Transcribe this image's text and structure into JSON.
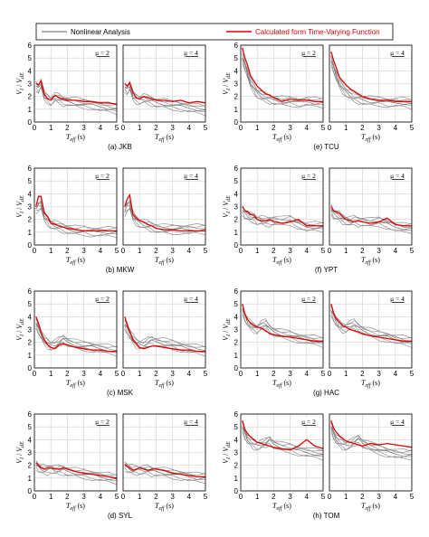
{
  "legend": {
    "nonlinear_label": "Nonlinear Analysis",
    "calculated_label": "Calculated form Time-Varying Function",
    "nonlinear_color": "#808080",
    "calculated_color": "#e00000"
  },
  "axis_text": {
    "x_main": "T",
    "x_sub": "eff",
    "x_unit": " (s)",
    "y_main_1": "V",
    "y_sub_1": "I",
    "y_sep": " / ",
    "y_main_2": "V",
    "y_sub_2": "dE"
  },
  "mu_values": [
    "μ = 2",
    "μ = 4"
  ],
  "captions": [
    "(a) JKB",
    "(e) TCU",
    "(b) MKW",
    "(f) YPT",
    "(c) MSK",
    "(g) HAC",
    "(d) SYL",
    "(h) TOM"
  ],
  "chart_data": {
    "type": "line",
    "xlim": [
      0,
      5
    ],
    "ylim": [
      0,
      6
    ],
    "xticks": [
      0,
      1,
      2,
      3,
      4,
      5
    ],
    "yticks": [
      0,
      1,
      2,
      3,
      4,
      5,
      6
    ],
    "grid": true,
    "legend_position": "top",
    "x": [
      0.1,
      0.25,
      0.4,
      0.6,
      0.8,
      1.0,
      1.25,
      1.5,
      1.75,
      2.0,
      2.5,
      3.0,
      3.5,
      4.0,
      4.5,
      5.0
    ],
    "stations": [
      {
        "caption": "(a) JKB",
        "mu2_red": [
          3.0,
          2.9,
          3.2,
          2.2,
          1.8,
          1.7,
          2.1,
          1.9,
          1.8,
          1.7,
          1.7,
          1.6,
          1.6,
          1.5,
          1.5,
          1.4
        ],
        "mu2_grey": [
          2.8,
          2.6,
          3.0,
          2.0,
          1.8,
          1.6,
          1.9,
          1.8,
          1.6,
          1.6,
          1.5,
          1.4,
          1.3,
          1.2,
          1.1,
          1.0
        ],
        "mu4_red": [
          3.0,
          2.8,
          3.1,
          2.3,
          1.9,
          1.8,
          2.0,
          1.9,
          1.8,
          1.7,
          1.7,
          1.6,
          1.7,
          1.5,
          1.6,
          1.5
        ],
        "mu4_grey": [
          2.7,
          2.5,
          2.8,
          2.0,
          1.8,
          1.7,
          1.8,
          1.7,
          1.6,
          1.5,
          1.4,
          1.3,
          1.2,
          1.1,
          1.0,
          0.9
        ]
      },
      {
        "caption": "(e) TCU",
        "mu2_red": [
          5.8,
          5.0,
          4.5,
          3.6,
          3.2,
          2.8,
          2.5,
          2.2,
          2.1,
          1.9,
          1.6,
          1.8,
          1.7,
          1.7,
          1.6,
          1.6
        ],
        "mu2_grey": [
          5.0,
          4.4,
          3.8,
          3.0,
          2.6,
          2.2,
          2.0,
          1.9,
          1.8,
          1.7,
          1.6,
          1.6,
          1.5,
          1.6,
          1.5,
          1.5
        ],
        "mu4_red": [
          5.5,
          4.8,
          4.3,
          3.5,
          3.2,
          2.9,
          2.6,
          2.4,
          2.2,
          2.0,
          1.8,
          1.7,
          1.7,
          1.6,
          1.6,
          1.6
        ],
        "mu4_grey": [
          4.8,
          4.2,
          3.6,
          3.0,
          2.6,
          2.3,
          2.1,
          1.9,
          1.8,
          1.7,
          1.6,
          1.6,
          1.5,
          1.5,
          1.5,
          1.4
        ]
      },
      {
        "caption": "(b) MKW",
        "mu2_red": [
          3.0,
          3.8,
          3.8,
          2.5,
          2.2,
          1.7,
          1.6,
          1.5,
          1.4,
          1.3,
          1.2,
          1.1,
          1.1,
          1.1,
          1.1,
          1.1
        ],
        "mu2_grey": [
          2.8,
          3.0,
          3.1,
          2.2,
          1.9,
          1.6,
          1.5,
          1.4,
          1.3,
          1.2,
          1.1,
          1.1,
          1.0,
          1.0,
          1.0,
          1.0
        ],
        "mu4_red": [
          3.0,
          3.6,
          3.9,
          2.4,
          2.1,
          1.9,
          1.8,
          1.6,
          1.5,
          1.3,
          1.2,
          1.2,
          1.1,
          1.1,
          1.1,
          1.1
        ],
        "mu4_grey": [
          2.6,
          3.0,
          3.1,
          2.2,
          1.9,
          1.7,
          1.6,
          1.5,
          1.4,
          1.3,
          1.2,
          1.2,
          1.2,
          1.2,
          1.2,
          1.2
        ]
      },
      {
        "caption": "(f) YPT",
        "mu2_red": [
          3.0,
          2.7,
          2.6,
          2.4,
          2.3,
          2.0,
          1.9,
          1.9,
          2.0,
          1.8,
          1.7,
          1.8,
          2.0,
          1.5,
          1.5,
          1.5
        ],
        "mu2_grey": [
          2.7,
          2.4,
          2.3,
          2.1,
          2.1,
          1.9,
          1.9,
          1.8,
          1.8,
          1.9,
          1.8,
          1.9,
          1.6,
          1.4,
          1.4,
          1.4
        ],
        "mu4_red": [
          3.0,
          2.7,
          2.6,
          2.5,
          2.2,
          2.0,
          1.9,
          1.8,
          1.9,
          1.8,
          1.7,
          1.8,
          2.1,
          1.6,
          1.5,
          1.5
        ],
        "mu4_grey": [
          2.8,
          2.4,
          2.3,
          2.2,
          2.0,
          1.9,
          1.8,
          1.9,
          1.8,
          1.8,
          1.7,
          1.8,
          1.6,
          1.4,
          1.3,
          1.3
        ]
      },
      {
        "caption": "(c) MSK",
        "mu2_red": [
          4.0,
          3.5,
          2.8,
          2.2,
          1.8,
          1.6,
          1.5,
          1.8,
          1.9,
          1.8,
          1.6,
          1.5,
          1.4,
          1.4,
          1.3,
          1.3
        ],
        "mu2_grey": [
          3.5,
          3.0,
          2.6,
          2.1,
          1.9,
          1.7,
          1.8,
          2.0,
          2.2,
          2.0,
          1.8,
          1.7,
          1.6,
          1.5,
          1.4,
          1.3
        ],
        "mu4_red": [
          4.0,
          3.4,
          2.9,
          2.2,
          1.9,
          1.6,
          1.5,
          1.6,
          1.7,
          1.7,
          1.6,
          1.5,
          1.4,
          1.4,
          1.3,
          1.3
        ],
        "mu4_grey": [
          3.4,
          3.0,
          2.6,
          2.2,
          1.9,
          1.8,
          1.8,
          2.0,
          2.1,
          2.0,
          1.9,
          1.8,
          1.6,
          1.5,
          1.4,
          1.3
        ]
      },
      {
        "caption": "(g) HAC",
        "mu2_red": [
          5.0,
          4.2,
          3.8,
          3.5,
          3.3,
          3.2,
          3.1,
          2.9,
          2.7,
          2.6,
          2.5,
          2.4,
          2.3,
          2.2,
          2.1,
          2.1
        ],
        "mu2_grey": [
          4.6,
          4.0,
          3.6,
          3.3,
          3.1,
          3.0,
          3.3,
          3.4,
          3.0,
          2.8,
          2.6,
          2.5,
          2.3,
          2.2,
          2.1,
          2.0
        ],
        "mu4_red": [
          5.0,
          4.3,
          3.9,
          3.6,
          3.3,
          3.2,
          3.0,
          2.9,
          2.8,
          2.7,
          2.5,
          2.4,
          2.3,
          2.2,
          2.1,
          2.1
        ],
        "mu4_grey": [
          4.5,
          4.0,
          3.6,
          3.3,
          3.1,
          3.1,
          3.3,
          3.4,
          3.1,
          2.9,
          2.7,
          2.5,
          2.4,
          2.2,
          2.1,
          2.0
        ]
      },
      {
        "caption": "(d) SYL",
        "mu2_red": [
          2.2,
          2.0,
          1.8,
          1.7,
          1.8,
          1.8,
          1.7,
          1.7,
          1.8,
          1.7,
          1.5,
          1.4,
          1.3,
          1.2,
          1.1,
          1.0
        ],
        "mu2_grey": [
          2.0,
          1.8,
          1.7,
          1.6,
          1.6,
          1.7,
          1.6,
          1.6,
          1.6,
          1.5,
          1.4,
          1.3,
          1.2,
          1.1,
          1.0,
          0.9
        ],
        "mu4_red": [
          2.1,
          1.9,
          1.8,
          1.6,
          1.7,
          1.8,
          1.7,
          1.6,
          1.7,
          1.7,
          1.6,
          1.4,
          1.3,
          1.2,
          1.1,
          1.1
        ],
        "mu4_grey": [
          1.9,
          1.8,
          1.7,
          1.6,
          1.6,
          1.6,
          1.6,
          1.6,
          1.5,
          1.5,
          1.4,
          1.3,
          1.2,
          1.1,
          1.0,
          1.0
        ]
      },
      {
        "caption": "(h) TOM",
        "mu2_red": [
          5.5,
          4.8,
          4.5,
          4.2,
          4.0,
          3.8,
          3.7,
          3.6,
          3.5,
          3.4,
          3.3,
          3.2,
          3.5,
          4.0,
          3.5,
          3.3
        ],
        "mu2_grey": [
          5.0,
          4.4,
          4.0,
          3.8,
          3.6,
          3.5,
          3.6,
          3.7,
          3.9,
          3.6,
          3.4,
          3.3,
          3.1,
          3.0,
          2.9,
          2.8
        ],
        "mu4_red": [
          5.5,
          4.9,
          4.6,
          4.3,
          4.1,
          3.9,
          3.8,
          3.7,
          3.6,
          3.5,
          3.7,
          3.6,
          3.7,
          3.6,
          3.5,
          3.4
        ],
        "mu4_grey": [
          5.0,
          4.4,
          4.0,
          3.8,
          3.6,
          3.5,
          3.6,
          3.8,
          4.0,
          3.7,
          3.4,
          3.2,
          3.0,
          2.9,
          2.8,
          2.8
        ]
      }
    ]
  }
}
